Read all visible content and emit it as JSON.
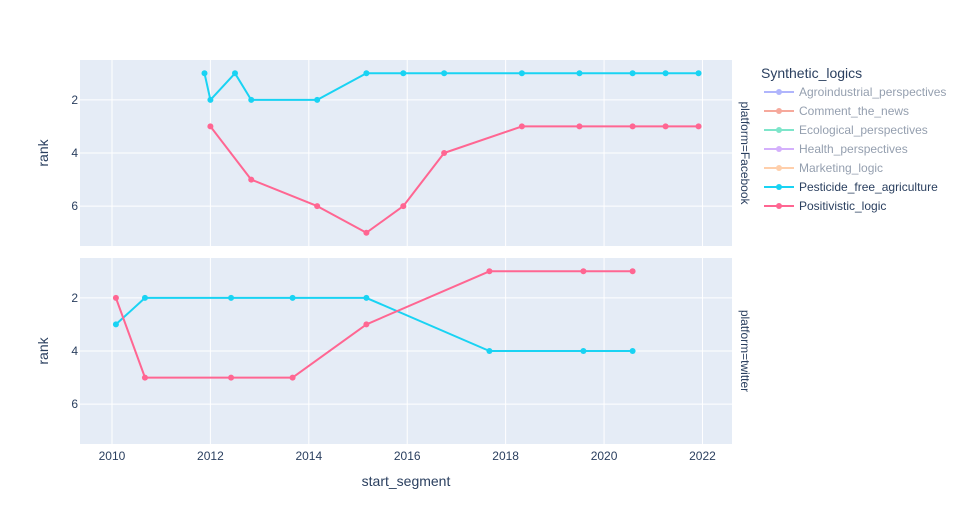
{
  "chart_data": {
    "type": "line",
    "xlabel": "start_segment",
    "ylabel": "rank",
    "xlim": [
      2009.35,
      2022.6
    ],
    "ylim": [
      0.5,
      7.5
    ],
    "y_reversed": true,
    "x_ticks": [
      2010,
      2012,
      2014,
      2016,
      2018,
      2020,
      2022
    ],
    "y_ticks": [
      2,
      4,
      6
    ],
    "grid": true,
    "background": "#e5ecf6",
    "legend": {
      "title": "Synthetic_logics",
      "placement": "right",
      "entries": [
        {
          "name": "Agroindustrial_perspectives",
          "color": "#636efa",
          "faded": true
        },
        {
          "name": "Comment_the_news",
          "color": "#ef553b",
          "faded": true
        },
        {
          "name": "Ecological_perspectives",
          "color": "#00cc96",
          "faded": true
        },
        {
          "name": "Health_perspectives",
          "color": "#ab63fa",
          "faded": true
        },
        {
          "name": "Marketing_logic",
          "color": "#ffa15a",
          "faded": true
        },
        {
          "name": "Pesticide_free_agriculture",
          "color": "#19d3f3",
          "faded": false
        },
        {
          "name": "Positivistic_logic",
          "color": "#ff6692",
          "faded": false
        }
      ]
    },
    "facets": [
      {
        "label": "platform=Facebook",
        "series": [
          {
            "name": "Pesticide_free_agriculture",
            "color": "#19d3f3",
            "x": [
              2011.88,
              2012.0,
              2012.5,
              2012.83,
              2014.17,
              2015.17,
              2015.92,
              2016.75,
              2018.33,
              2019.5,
              2020.58,
              2021.25,
              2021.92
            ],
            "y": [
              1,
              2,
              1,
              2,
              2,
              1,
              1,
              1,
              1,
              1,
              1,
              1,
              1
            ]
          },
          {
            "name": "Positivistic_logic",
            "color": "#ff6692",
            "x": [
              2012.0,
              2012.83,
              2014.17,
              2015.17,
              2015.92,
              2016.75,
              2018.33,
              2019.5,
              2020.58,
              2021.25,
              2021.92
            ],
            "y": [
              3,
              5,
              6,
              7,
              6,
              4,
              3,
              3,
              3,
              3,
              3
            ]
          }
        ]
      },
      {
        "label": "platform=twitter",
        "series": [
          {
            "name": "Pesticide_free_agriculture",
            "color": "#19d3f3",
            "x": [
              2010.08,
              2010.67,
              2012.42,
              2013.67,
              2015.17,
              2017.67,
              2019.58,
              2020.58
            ],
            "y": [
              3,
              2,
              2,
              2,
              2,
              4,
              4,
              4
            ]
          },
          {
            "name": "Positivistic_logic",
            "color": "#ff6692",
            "x": [
              2010.08,
              2010.67,
              2012.42,
              2013.67,
              2015.17,
              2017.67,
              2019.58,
              2020.58
            ],
            "y": [
              2,
              5,
              5,
              5,
              3,
              1,
              1,
              1
            ]
          }
        ]
      }
    ]
  }
}
